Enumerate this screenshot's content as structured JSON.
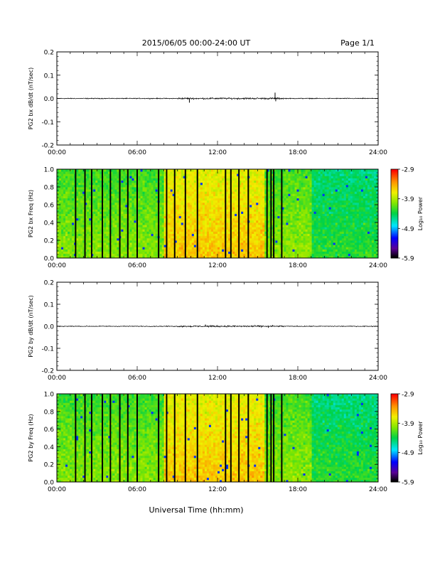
{
  "header": {
    "title": "2015/06/05  00:00-24:00 UT",
    "page": "Page 1/1"
  },
  "xlabel": "Universal Time (hh:mm)",
  "chart_data": [
    {
      "type": "line",
      "ylabel": "PG2 bx dB/dt (nT/sec)",
      "xlim": [
        0,
        24
      ],
      "ylim": [
        -0.2,
        0.2
      ],
      "xticks": [
        "00:00",
        "06:00",
        "12:00",
        "18:00",
        "24:00"
      ],
      "yticks": [
        "-0.2",
        "-0.1",
        "0.0",
        "0.1",
        "0.2"
      ],
      "baseline": 0.0,
      "spikes": [
        {
          "x": 9.9,
          "y": -0.018
        },
        {
          "x": 16.3,
          "y": 0.025
        },
        {
          "x": 16.35,
          "y": -0.012
        }
      ]
    },
    {
      "type": "heatmap",
      "ylabel": "PG2 bx Freq (Hz)",
      "xlim": [
        0,
        24
      ],
      "ylim": [
        0.0,
        1.0
      ],
      "xticks": [
        "00:00",
        "06:00",
        "12:00",
        "18:00",
        "24:00"
      ],
      "yticks": [
        "0.0",
        "0.2",
        "0.4",
        "0.6",
        "0.8",
        "1.0"
      ],
      "colorbar": {
        "label": "Log₁₀ Power",
        "range": [
          -5.9,
          -2.9
        ],
        "ticks": [
          "-2.9",
          "-3.9",
          "-4.9",
          "-5.9"
        ]
      },
      "gap_hours": [
        1.4,
        2.1,
        2.6,
        3.4,
        4.0,
        4.7,
        5.3,
        6.0,
        7.6,
        8.2,
        8.8,
        9.6,
        10.5,
        12.6,
        13.0,
        13.6,
        14.3,
        15.7,
        16.0,
        16.2,
        16.8
      ]
    },
    {
      "type": "line",
      "ylabel": "PG2 by dB/dt (nT/sec)",
      "xlim": [
        0,
        24
      ],
      "ylim": [
        -0.2,
        0.2
      ],
      "xticks": [
        "00:00",
        "06:00",
        "12:00",
        "18:00",
        "24:00"
      ],
      "yticks": [
        "-0.2",
        "-0.1",
        "0.0",
        "0.1",
        "0.2"
      ],
      "baseline": 0.0,
      "spikes": [
        {
          "x": 11.1,
          "y": 0.008
        },
        {
          "x": 15.8,
          "y": -0.007
        }
      ]
    },
    {
      "type": "heatmap",
      "ylabel": "PG2 by Freq (Hz)",
      "xlim": [
        0,
        24
      ],
      "ylim": [
        0.0,
        1.0
      ],
      "xticks": [
        "00:00",
        "06:00",
        "12:00",
        "18:00",
        "24:00"
      ],
      "yticks": [
        "0.0",
        "0.2",
        "0.4",
        "0.6",
        "0.8",
        "1.0"
      ],
      "colorbar": {
        "label": "Log₁₀ Power",
        "range": [
          -5.9,
          -2.9
        ],
        "ticks": [
          "-2.9",
          "-3.9",
          "-4.9",
          "-5.9"
        ]
      },
      "gap_hours": [
        1.4,
        2.1,
        2.6,
        3.4,
        4.0,
        4.7,
        5.3,
        6.0,
        7.6,
        8.2,
        8.8,
        9.6,
        10.5,
        12.6,
        13.0,
        13.6,
        14.3,
        15.7,
        16.0,
        16.2,
        16.8
      ]
    }
  ]
}
